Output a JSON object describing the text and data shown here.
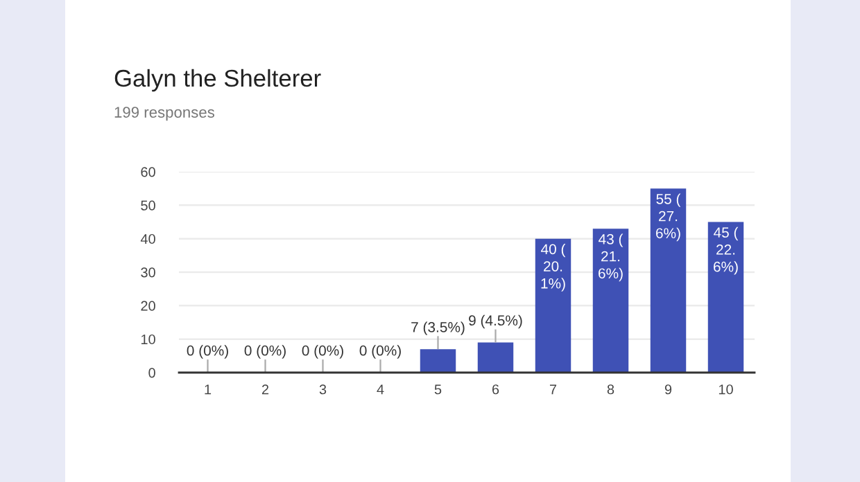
{
  "chart_data": {
    "type": "bar",
    "title": "Galyn the Shelterer",
    "subtitle": "199 responses",
    "categories": [
      "1",
      "2",
      "3",
      "4",
      "5",
      "6",
      "7",
      "8",
      "9",
      "10"
    ],
    "values": [
      0,
      0,
      0,
      0,
      7,
      9,
      40,
      43,
      55,
      45
    ],
    "color": "#3f51b5",
    "value_labels": [
      "0 (0%)",
      "0 (0%)",
      "0 (0%)",
      "0 (0%)",
      "7 (3.5%)",
      "9 (4.5%)",
      "40 (\n20.\n1%)",
      "43 (\n21.\n6%)",
      "55 (\n27.\n6%)",
      "45 (\n22.\n6%)"
    ],
    "ylim": [
      0,
      60
    ],
    "yticks": [
      0,
      10,
      20,
      30,
      40,
      50,
      60
    ],
    "grid": "y",
    "legend": false
  }
}
